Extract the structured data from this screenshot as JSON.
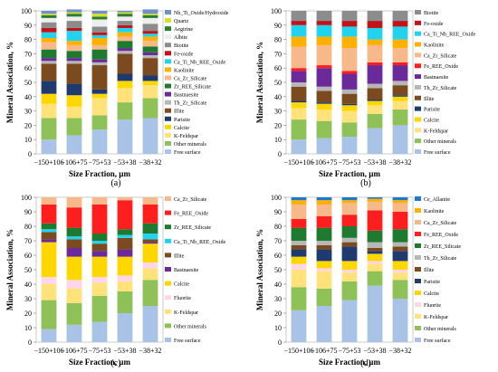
{
  "figure": {
    "colors": {
      "Free surface": "#a9c3e6",
      "Other minerals": "#8ec259",
      "K-Feldspar": "#ffe27a",
      "Calcite": "#ffd700",
      "Parisite": "#1f3a6e",
      "Illite": "#7b4a1e",
      "Th_Zr_Silicate": "#b7b7b7",
      "Zr_REE_Silicate": "#1e7a2e",
      "Bastnaesite": "#6b2a9a",
      "Ca_Zr_Silicate": "#f7b98a",
      "Kaolinite": "#ffb000",
      "Fe_REE_Oxide": "#ff1e1e",
      "Fe-oxide": "#c0141a",
      "Biotite": "#8c8c8c",
      "Aegirine": "#2e7d32",
      "Albite": "#eeeeee",
      "Quartz": "#d9e021",
      "Nb_Ti_Oxide/Hydroxide": "#6f90c8",
      "Ca_Ti_Nb_REE_Oxide": "#22d3ee",
      "Fluorite": "#ffd6e7",
      "Ce_Allanite": "#1f78c8"
    }
  },
  "chart_data": [
    {
      "panel_label": "(a)",
      "type": "bar",
      "stacked": true,
      "xlabel": "Size Fraction, µm",
      "ylabel": "Mineral Association, %",
      "ylim": [
        0,
        100
      ],
      "yticks": [
        0,
        10,
        20,
        30,
        40,
        50,
        60,
        70,
        80,
        90,
        100
      ],
      "categories": [
        "−150+106",
        "−106+75",
        "−75+53",
        "−53+38",
        "−38+32"
      ],
      "legend": [
        "Nb_Ti_Oxide/Hydroxide",
        "Quartz",
        "Aegirine",
        "Albite",
        "Biotite",
        "Fe-oxide",
        "Ca_Ti_Nb_REE_Oxide",
        "Kaolinite",
        "Ca_Zr_Silicate",
        "Zr_REE_Silicate",
        "Bastnaesite",
        "Th_Zr_Silicate",
        "Illite",
        "Parisite",
        "Calcite",
        "K-Feldspar",
        "Other minerals",
        "Free surface"
      ],
      "series": [
        {
          "name": "Free surface",
          "values": [
            10,
            13,
            17,
            24,
            25
          ]
        },
        {
          "name": "Other minerals",
          "values": [
            15,
            12,
            10,
            12,
            14
          ]
        },
        {
          "name": "K-Feldspar",
          "values": [
            10,
            8,
            12,
            10,
            9
          ]
        },
        {
          "name": "Calcite",
          "values": [
            7,
            8,
            3,
            5,
            3
          ]
        },
        {
          "name": "Parisite",
          "values": [
            9,
            8,
            3,
            5,
            4
          ]
        },
        {
          "name": "Illite",
          "values": [
            12,
            14,
            17,
            14,
            12
          ]
        },
        {
          "name": "Th_Zr_Silicate",
          "values": [
            2,
            2,
            2,
            2,
            2
          ]
        },
        {
          "name": "Bastnaesite",
          "values": [
            2,
            2,
            2,
            2,
            2
          ]
        },
        {
          "name": "Zr_REE_Silicate",
          "values": [
            6,
            5,
            7,
            5,
            4
          ]
        },
        {
          "name": "Ca_Zr_Silicate",
          "values": [
            5,
            4,
            3,
            3,
            4
          ]
        },
        {
          "name": "Kaolinite",
          "values": [
            3,
            3,
            5,
            3,
            3
          ]
        },
        {
          "name": "Ca_Ti_Nb_REE_Oxide",
          "values": [
            4,
            7,
            2,
            3,
            2
          ]
        },
        {
          "name": "Fe-oxide",
          "values": [
            3,
            2,
            2,
            2,
            2
          ]
        },
        {
          "name": "Biotite",
          "values": [
            4,
            5,
            4,
            3,
            5
          ]
        },
        {
          "name": "Albite",
          "values": [
            3,
            3,
            5,
            3,
            4
          ]
        },
        {
          "name": "Aegirine",
          "values": [
            2,
            2,
            2,
            2,
            2
          ]
        },
        {
          "name": "Quartz",
          "values": [
            1,
            1,
            2,
            1,
            1
          ]
        },
        {
          "name": "Nb_Ti_Oxide/Hydroxide",
          "values": [
            2,
            2,
            2,
            1,
            3
          ]
        }
      ]
    },
    {
      "panel_label": "(b)",
      "type": "bar",
      "stacked": true,
      "xlabel": "Size Fraction, µm",
      "ylabel": "Mineral Association, %",
      "ylim": [
        0,
        100
      ],
      "yticks": [
        0,
        10,
        20,
        30,
        40,
        50,
        60,
        70,
        80,
        90,
        100
      ],
      "categories": [
        "−150+106",
        "−106+75",
        "−75+53",
        "−53+38",
        "−38+32"
      ],
      "legend": [
        "Biotite",
        "Fe-oxide",
        "Ca_Ti_Nb_REE_Oxide",
        "Kaolinite",
        "Ca_Zr_Silicate",
        "Fe_REE_Oxide",
        "Bastnaesite",
        "Th_Zr_Silicate",
        "Illite",
        "Parisite",
        "Calcite",
        "K-Feldspar",
        "Other minerals",
        "Free surface"
      ],
      "series": [
        {
          "name": "Free surface",
          "values": [
            10,
            11,
            12,
            18,
            20
          ]
        },
        {
          "name": "Other minerals",
          "values": [
            14,
            12,
            10,
            10,
            11
          ]
        },
        {
          "name": "K-Feldspar",
          "values": [
            8,
            8,
            8,
            6,
            6
          ]
        },
        {
          "name": "Calcite",
          "values": [
            4,
            4,
            4,
            3,
            3
          ]
        },
        {
          "name": "Parisite",
          "values": [
            1,
            1,
            1,
            1,
            1
          ]
        },
        {
          "name": "Illite",
          "values": [
            10,
            8,
            7,
            8,
            7
          ]
        },
        {
          "name": "Th_Zr_Silicate",
          "values": [
            3,
            3,
            3,
            3,
            3
          ]
        },
        {
          "name": "Bastnaesite",
          "values": [
            8,
            13,
            11,
            13,
            11
          ]
        },
        {
          "name": "Fe_REE_Oxide",
          "values": [
            2,
            2,
            2,
            2,
            2
          ]
        },
        {
          "name": "Ca_Zr_Silicate",
          "values": [
            15,
            14,
            16,
            12,
            10
          ]
        },
        {
          "name": "Kaolinite",
          "values": [
            7,
            6,
            8,
            4,
            6
          ]
        },
        {
          "name": "Ca_Ti_Nb_REE_Oxide",
          "values": [
            8,
            8,
            7,
            8,
            9
          ]
        },
        {
          "name": "Fe-oxide",
          "values": [
            3,
            3,
            4,
            5,
            4
          ]
        },
        {
          "name": "Biotite",
          "values": [
            7,
            7,
            7,
            7,
            7
          ]
        }
      ]
    },
    {
      "panel_label": "(c)",
      "type": "bar",
      "stacked": true,
      "xlabel": "Size Fraction, µm",
      "ylabel": "Mineral Association, %",
      "ylim": [
        0,
        100
      ],
      "yticks": [
        0,
        10,
        20,
        30,
        40,
        50,
        60,
        70,
        80,
        90,
        100
      ],
      "categories": [
        "−150+106",
        "−106+75",
        "−75+53",
        "−53+38",
        "−38+32"
      ],
      "legend": [
        "Ca_Zr_Silicate",
        "Fe_REE_Oxide",
        "Zr_REE_Silicate",
        "Ca_Ti_Nb_REE_Oxide",
        "Illite",
        "Bastnaesite",
        "Calcite",
        "Fluorite",
        "K-Feldspar",
        "Other minerals",
        "Free surface"
      ],
      "series": [
        {
          "name": "Free surface",
          "values": [
            9,
            12,
            14,
            20,
            25
          ]
        },
        {
          "name": "Other minerals",
          "values": [
            20,
            15,
            18,
            15,
            18
          ]
        },
        {
          "name": "K-Feldspar",
          "values": [
            11,
            10,
            9,
            7,
            8
          ]
        },
        {
          "name": "Fluorite",
          "values": [
            5,
            6,
            4,
            4,
            4
          ]
        },
        {
          "name": "Calcite",
          "values": [
            24,
            16,
            14,
            13,
            13
          ]
        },
        {
          "name": "Bastnaesite",
          "values": [
            2,
            6,
            4,
            5,
            1
          ]
        },
        {
          "name": "Illite",
          "values": [
            5,
            6,
            5,
            8,
            2
          ]
        },
        {
          "name": "Ca_Ti_Nb_REE_Oxide",
          "values": [
            2,
            2,
            2,
            2,
            4
          ]
        },
        {
          "name": "Zr_REE_Silicate",
          "values": [
            4,
            6,
            5,
            4,
            7
          ]
        },
        {
          "name": "Fe_REE_Oxide",
          "values": [
            13,
            14,
            20,
            20,
            13
          ]
        },
        {
          "name": "Ca_Zr_Silicate",
          "values": [
            5,
            7,
            5,
            2,
            5
          ]
        }
      ]
    },
    {
      "panel_label": "(d)",
      "type": "bar",
      "stacked": true,
      "xlabel": "Size Fraction, µm",
      "ylabel": "Mineral Association, %",
      "ylim": [
        0,
        100
      ],
      "yticks": [
        0,
        10,
        20,
        30,
        40,
        50,
        60,
        70,
        80,
        90,
        100
      ],
      "categories": [
        "−150+106",
        "−106+75",
        "−75+53",
        "−53+38",
        "−38+32"
      ],
      "legend": [
        "Ce_Allanite",
        "Kaolinite",
        "Ca_Zr_Silicate",
        "Fe_REE_Oxide",
        "Zr_REE_Silicate",
        "Th_Zr_Silicate",
        "Illite",
        "Parisite",
        "Calcite",
        "Fluorite",
        "K-Feldspar",
        "Other minerals",
        "Free surface"
      ],
      "series": [
        {
          "name": "Free surface",
          "values": [
            22,
            25,
            29,
            39,
            30
          ]
        },
        {
          "name": "Other minerals",
          "values": [
            16,
            12,
            13,
            10,
            13
          ]
        },
        {
          "name": "K-Feldspar",
          "values": [
            12,
            12,
            6,
            5,
            5
          ]
        },
        {
          "name": "Fluorite",
          "values": [
            4,
            2,
            2,
            2,
            2
          ]
        },
        {
          "name": "Calcite",
          "values": [
            5,
            5,
            6,
            5,
            6
          ]
        },
        {
          "name": "Parisite",
          "values": [
            5,
            8,
            10,
            2,
            7
          ]
        },
        {
          "name": "Illite",
          "values": [
            3,
            3,
            3,
            2,
            3
          ]
        },
        {
          "name": "Th_Zr_Silicate",
          "values": [
            3,
            3,
            3,
            4,
            3
          ]
        },
        {
          "name": "Zr_REE_Silicate",
          "values": [
            9,
            9,
            8,
            8,
            9
          ]
        },
        {
          "name": "Fe_REE_Oxide",
          "values": [
            6,
            8,
            8,
            14,
            12
          ]
        },
        {
          "name": "Ca_Zr_Silicate",
          "values": [
            10,
            8,
            8,
            6,
            6
          ]
        },
        {
          "name": "Kaolinite",
          "values": [
            3,
            3,
            2,
            2,
            2
          ]
        },
        {
          "name": "Ce_Allanite",
          "values": [
            2,
            2,
            2,
            1,
            2
          ]
        }
      ]
    }
  ]
}
